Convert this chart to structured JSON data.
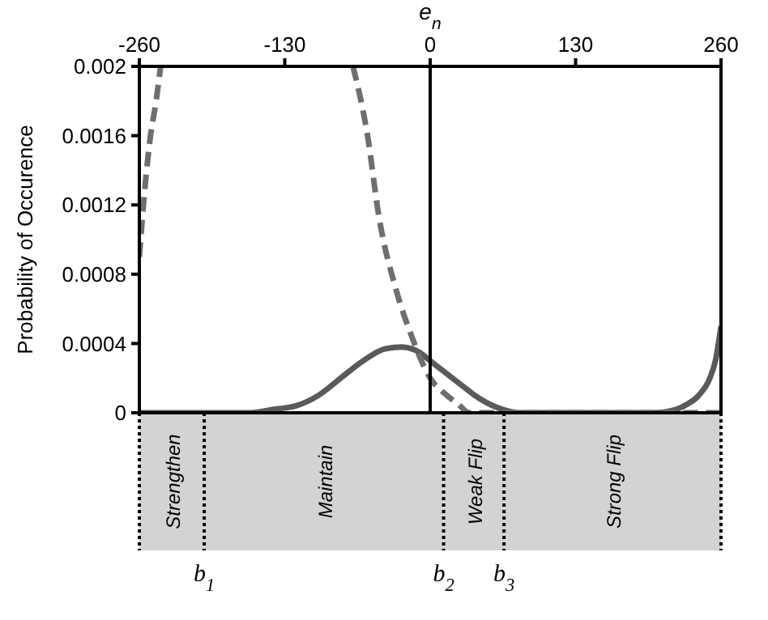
{
  "chart_data": {
    "type": "line",
    "xlabel": "e$_{n}$",
    "ylabel": "Probability of Occurence",
    "xlim": [
      -260,
      260
    ],
    "xticks": [
      -260,
      -130,
      0,
      130,
      260
    ],
    "ylim": [
      0,
      0.002
    ],
    "yticks": [
      0,
      0.0004,
      0.0008,
      0.0012,
      0.0016,
      0.002
    ],
    "grid": false,
    "marker": "none",
    "series": [
      {
        "color": "#5a5a5a",
        "line_style": "solid",
        "x": [
          -260,
          -200,
          -160,
          -140,
          -120,
          -100,
          -80,
          -60,
          -40,
          -25,
          -10,
          0,
          10,
          20,
          30,
          40,
          50,
          60,
          70,
          80,
          120,
          200,
          220,
          230,
          240,
          250,
          255,
          260
        ],
        "values": [
          0,
          0,
          0,
          2e-05,
          4e-05,
          0.0001,
          0.0002,
          0.0003,
          0.00037,
          0.00038,
          0.00035,
          0.0003,
          0.00025,
          0.0002,
          0.00015,
          0.0001,
          6e-05,
          3e-05,
          1e-05,
          0,
          0,
          0,
          2e-05,
          5e-05,
          0.0001,
          0.0002,
          0.0003,
          0.0005
        ]
      },
      {
        "color": "#6e6e6e",
        "line_style": "dashed",
        "x": [
          -260,
          -255,
          -250,
          -245,
          -241,
          -150,
          -69,
          -56,
          -46,
          -30,
          -17,
          0,
          15,
          25,
          35,
          100,
          260
        ],
        "values": [
          0.0009,
          0.0013,
          0.0016,
          0.0018,
          0.002,
          null,
          0.002,
          0.0016,
          0.00114,
          0.0007,
          0.00045,
          0.0002,
          0.0001,
          5e-05,
          0,
          0,
          0
        ]
      }
    ],
    "ref_lines": [
      {
        "axis": "x",
        "value": 0,
        "color": "#000000",
        "line_style": "solid"
      },
      {
        "axis": "x",
        "value": -202,
        "label": "b$_{1}$",
        "color": "#000000",
        "line_style": "dotted"
      },
      {
        "axis": "x",
        "value": 12,
        "label": "b$_{2}$",
        "color": "#000000",
        "line_style": "dotted"
      },
      {
        "axis": "x",
        "value": 66,
        "label": "b$_{3}$",
        "color": "#000000",
        "line_style": "dotted"
      }
    ],
    "annotations": [
      "Strengthen",
      "Maintain",
      "Weak Flip",
      "Strong Flip"
    ]
  }
}
